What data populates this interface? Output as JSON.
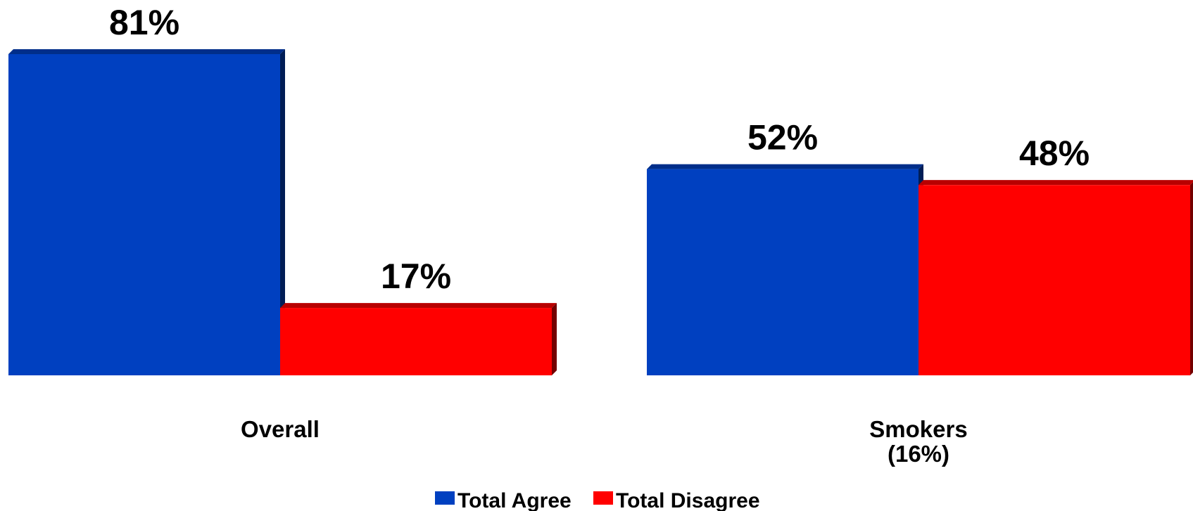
{
  "chart_data": {
    "type": "bar",
    "categories": [
      "Overall",
      "Smokers (16%)"
    ],
    "category_lines": [
      [
        "Overall"
      ],
      [
        "Smokers",
        "(16%)"
      ]
    ],
    "series": [
      {
        "name": "Total Agree",
        "values": [
          81,
          52
        ],
        "labels": [
          "81%",
          "52%"
        ],
        "color": "#0040C0"
      },
      {
        "name": "Total Disagree",
        "values": [
          17,
          48
        ],
        "labels": [
          "17%",
          "48%"
        ],
        "color": "#FF0000"
      }
    ],
    "ylim": [
      0,
      81
    ],
    "grid": false,
    "legend_position": "bottom",
    "bar_style": "3d"
  }
}
